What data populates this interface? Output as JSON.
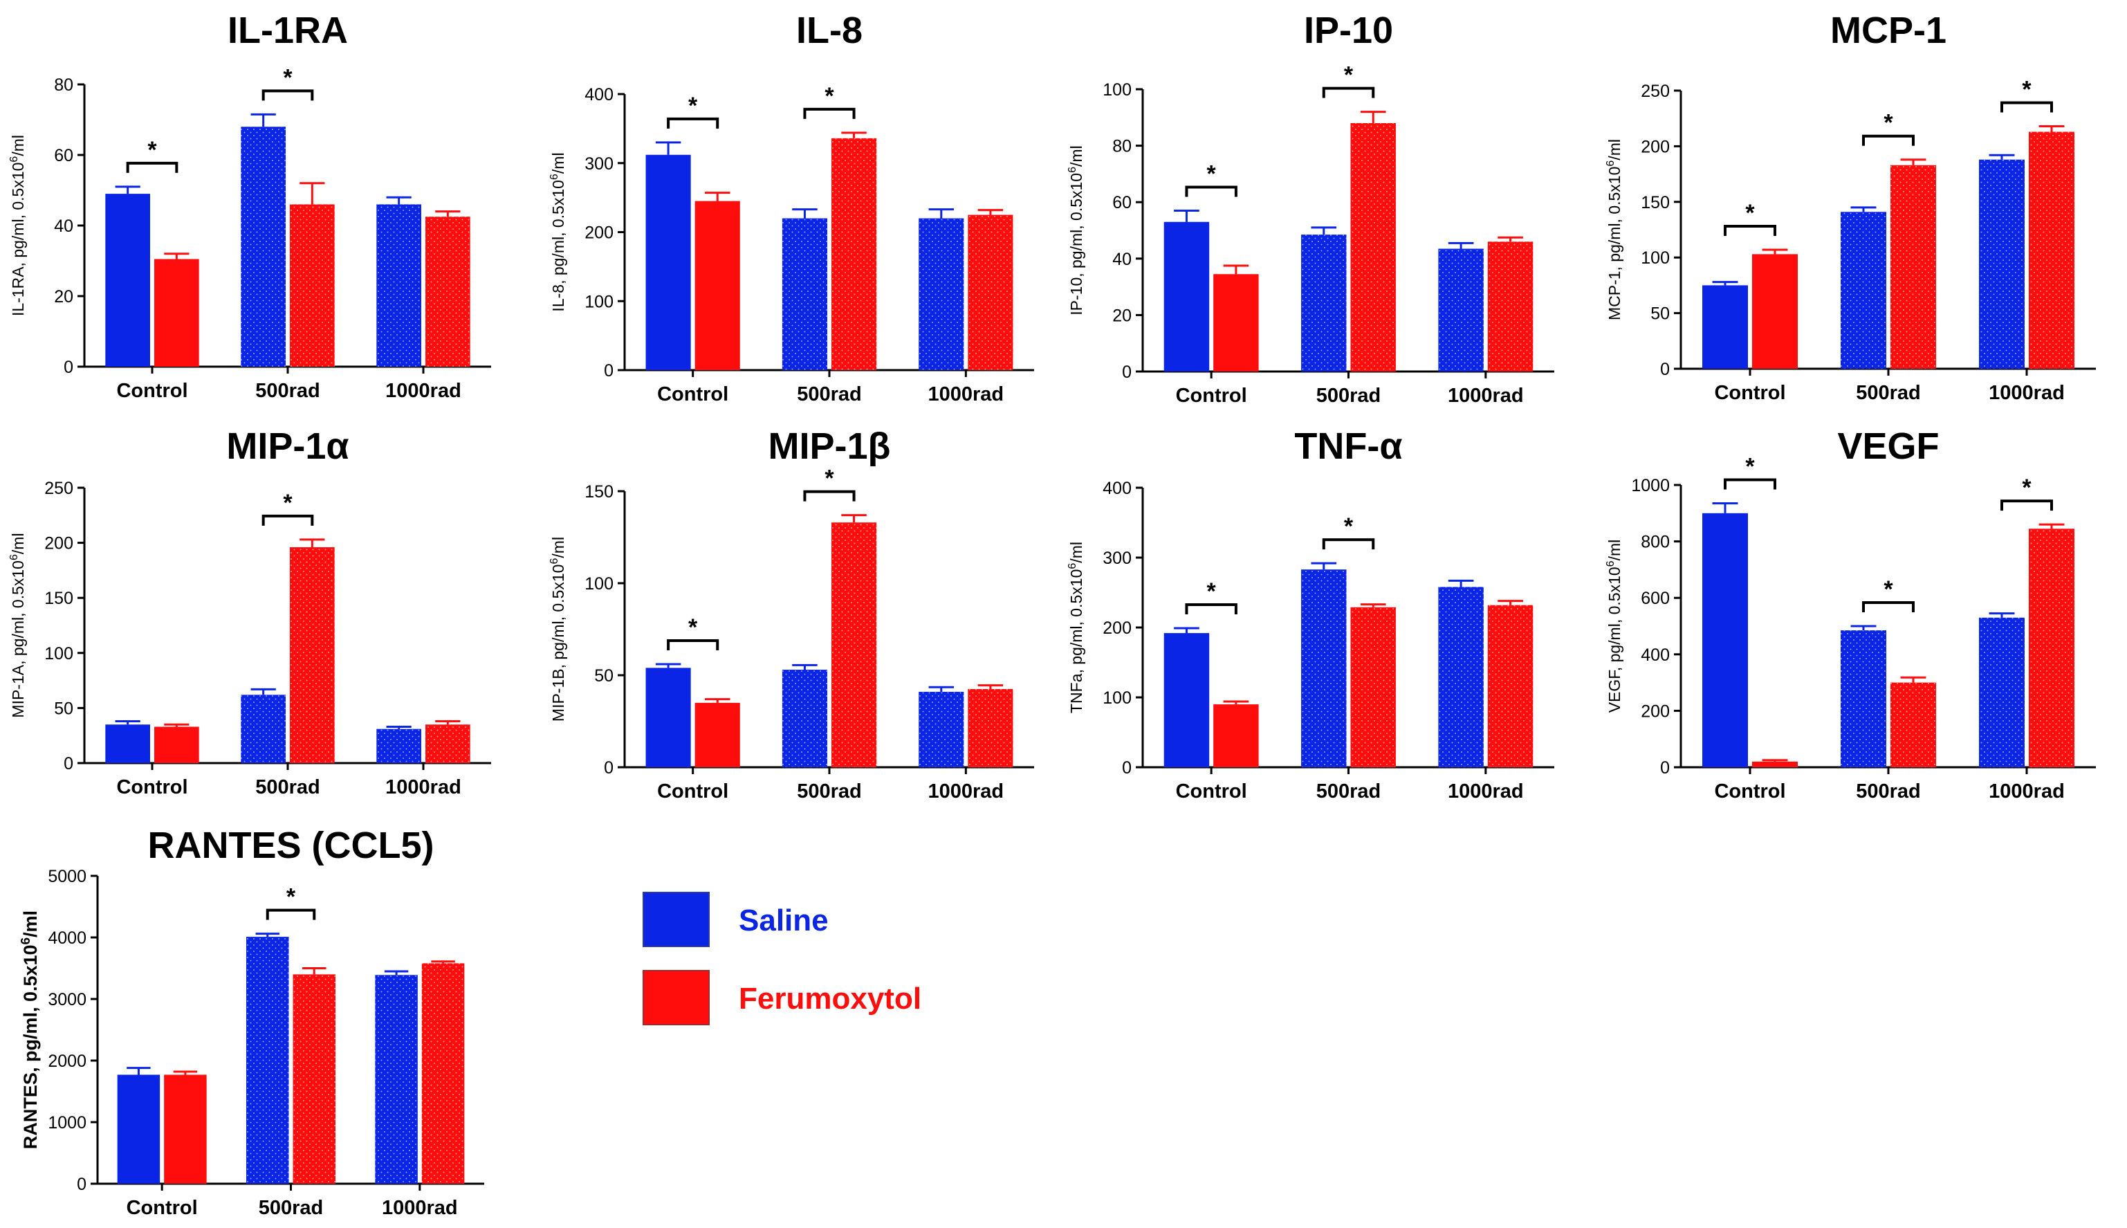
{
  "colors": {
    "saline": "#0a25e6",
    "ferumoxytol": "#ff0d0d",
    "axis": "#000000"
  },
  "legend": [
    {
      "name": "Saline",
      "color": "#0a25e6"
    },
    {
      "name": "Ferumoxytol",
      "color": "#ff0d0d"
    }
  ],
  "chart_data": [
    {
      "type": "bar",
      "title": "IL-1RA",
      "ylabel": "IL-1RA, pg/ml, 0.5x10^6/ml",
      "ylabel_bold": false,
      "categories": [
        "Control",
        "500rad",
        "1000rad"
      ],
      "ylim": [
        0,
        80
      ],
      "yticks": [
        0,
        20,
        40,
        60,
        80
      ],
      "series": [
        {
          "name": "Saline",
          "values": [
            49,
            68,
            46
          ],
          "errors": [
            2,
            3.5,
            2
          ]
        },
        {
          "name": "Ferumoxytol",
          "values": [
            30.5,
            46,
            42.5
          ],
          "errors": [
            1.5,
            6,
            1.5
          ]
        }
      ],
      "significance": [
        {
          "category": 0,
          "label": "*"
        },
        {
          "category": 1,
          "label": "*"
        }
      ]
    },
    {
      "type": "bar",
      "title": "IL-8",
      "ylabel": "IL-8, pg/ml, 0.5x10^6/ml",
      "ylabel_bold": false,
      "categories": [
        "Control",
        "500rad",
        "1000rad"
      ],
      "ylim": [
        0,
        400
      ],
      "yticks": [
        0,
        100,
        200,
        300,
        400
      ],
      "series": [
        {
          "name": "Saline",
          "values": [
            312,
            220,
            220
          ],
          "errors": [
            18,
            13,
            13
          ]
        },
        {
          "name": "Ferumoxytol",
          "values": [
            245,
            336,
            225
          ],
          "errors": [
            12,
            8,
            7
          ]
        }
      ],
      "significance": [
        {
          "category": 0,
          "label": "*"
        },
        {
          "category": 1,
          "label": "*"
        }
      ]
    },
    {
      "type": "bar",
      "title": "IP-10",
      "ylabel": "IP-10, pg/ml, 0.5x10^6/ml",
      "ylabel_bold": false,
      "categories": [
        "Control",
        "500rad",
        "1000rad"
      ],
      "ylim": [
        0,
        100
      ],
      "yticks": [
        0,
        20,
        40,
        60,
        80,
        100
      ],
      "series": [
        {
          "name": "Saline",
          "values": [
            53,
            48.5,
            43.5
          ],
          "errors": [
            4,
            2.5,
            2
          ]
        },
        {
          "name": "Ferumoxytol",
          "values": [
            34.5,
            88,
            46
          ],
          "errors": [
            3,
            4,
            1.5
          ]
        }
      ],
      "significance": [
        {
          "category": 0,
          "label": "*"
        },
        {
          "category": 1,
          "label": "*"
        }
      ]
    },
    {
      "type": "bar",
      "title": "MCP-1",
      "ylabel": "MCP-1, pg/ml, 0.5x10^6/ml",
      "ylabel_bold": false,
      "categories": [
        "Control",
        "500rad",
        "1000rad"
      ],
      "ylim": [
        0,
        250
      ],
      "yticks": [
        0,
        50,
        100,
        150,
        200,
        250
      ],
      "series": [
        {
          "name": "Saline",
          "values": [
            75,
            141,
            188
          ],
          "errors": [
            3,
            4,
            4
          ]
        },
        {
          "name": "Ferumoxytol",
          "values": [
            103,
            183,
            213
          ],
          "errors": [
            4,
            5,
            5
          ]
        }
      ],
      "significance": [
        {
          "category": 0,
          "label": "*"
        },
        {
          "category": 1,
          "label": "*"
        },
        {
          "category": 2,
          "label": "*"
        }
      ]
    },
    {
      "type": "bar",
      "title": "MIP-1α",
      "ylabel": "MIP-1A, pg/ml, 0.5x10^6/ml",
      "ylabel_bold": false,
      "categories": [
        "Control",
        "500rad",
        "1000rad"
      ],
      "ylim": [
        0,
        250
      ],
      "yticks": [
        0,
        50,
        100,
        150,
        200,
        250
      ],
      "series": [
        {
          "name": "Saline",
          "values": [
            35,
            62,
            31
          ],
          "errors": [
            3,
            5,
            2
          ]
        },
        {
          "name": "Ferumoxytol",
          "values": [
            33,
            196,
            35
          ],
          "errors": [
            2,
            7,
            3
          ]
        }
      ],
      "significance": [
        {
          "category": 1,
          "label": "*"
        }
      ]
    },
    {
      "type": "bar",
      "title": "MIP-1β",
      "ylabel": "MIP-1B, pg/ml, 0.5x10^6/ml",
      "ylabel_bold": false,
      "categories": [
        "Control",
        "500rad",
        "1000rad"
      ],
      "ylim": [
        0,
        150
      ],
      "yticks": [
        0,
        50,
        100,
        150
      ],
      "series": [
        {
          "name": "Saline",
          "values": [
            54,
            53,
            41
          ],
          "errors": [
            2,
            2.5,
            2.5
          ]
        },
        {
          "name": "Ferumoxytol",
          "values": [
            35,
            133,
            42.5
          ],
          "errors": [
            2,
            4,
            2
          ]
        }
      ],
      "significance": [
        {
          "category": 0,
          "label": "*"
        },
        {
          "category": 1,
          "label": "*"
        }
      ]
    },
    {
      "type": "bar",
      "title": "TNF-α",
      "ylabel": "TNFa, pg/ml, 0.5x10^6/ml",
      "ylabel_bold": false,
      "categories": [
        "Control",
        "500rad",
        "1000rad"
      ],
      "ylim": [
        0,
        400
      ],
      "yticks": [
        0,
        100,
        200,
        300,
        400
      ],
      "series": [
        {
          "name": "Saline",
          "values": [
            192,
            283,
            258
          ],
          "errors": [
            7,
            9,
            9
          ]
        },
        {
          "name": "Ferumoxytol",
          "values": [
            90,
            229,
            232
          ],
          "errors": [
            4,
            4,
            6
          ]
        }
      ],
      "significance": [
        {
          "category": 0,
          "label": "*"
        },
        {
          "category": 1,
          "label": "*"
        }
      ]
    },
    {
      "type": "bar",
      "title": "VEGF",
      "ylabel": "VEGF, pg/ml, 0.5x10^6/ml",
      "ylabel_bold": false,
      "categories": [
        "Control",
        "500rad",
        "1000rad"
      ],
      "ylim": [
        0,
        1000
      ],
      "yticks": [
        0,
        200,
        400,
        600,
        800,
        1000
      ],
      "series": [
        {
          "name": "Saline",
          "values": [
            900,
            485,
            530
          ],
          "errors": [
            35,
            15,
            15
          ]
        },
        {
          "name": "Ferumoxytol",
          "values": [
            20,
            300,
            845
          ],
          "errors": [
            5,
            18,
            15
          ]
        }
      ],
      "significance": [
        {
          "category": 0,
          "label": "*"
        },
        {
          "category": 1,
          "label": "*"
        },
        {
          "category": 2,
          "label": "*"
        }
      ]
    },
    {
      "type": "bar",
      "title": "RANTES (CCL5)",
      "ylabel": "RANTES, pg/ml, 0.5x10^6/ml",
      "ylabel_bold": true,
      "categories": [
        "Control",
        "500rad",
        "1000rad"
      ],
      "ylim": [
        0,
        5000
      ],
      "yticks": [
        0,
        1000,
        2000,
        3000,
        4000,
        5000
      ],
      "series": [
        {
          "name": "Saline",
          "values": [
            1770,
            4010,
            3390
          ],
          "errors": [
            110,
            50,
            60
          ]
        },
        {
          "name": "Ferumoxytol",
          "values": [
            1770,
            3400,
            3580
          ],
          "errors": [
            50,
            100,
            30
          ]
        }
      ],
      "significance": [
        {
          "category": 1,
          "label": "*"
        }
      ]
    }
  ]
}
